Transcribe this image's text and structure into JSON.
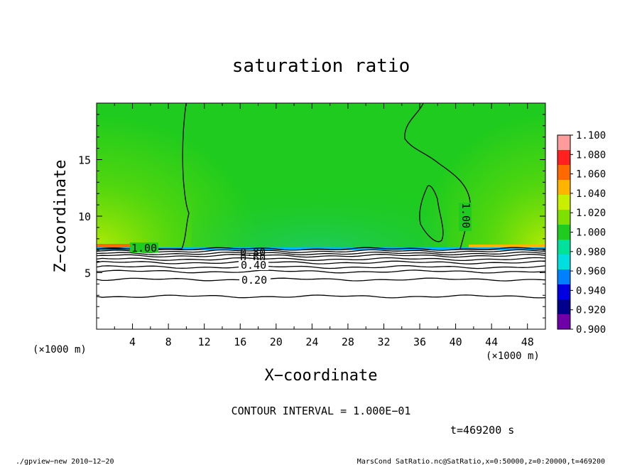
{
  "chart_data": {
    "type": "heatmap",
    "title": "saturation ratio",
    "xlabel": "X−coordinate",
    "ylabel": "Z−coordinate",
    "x_unit_label": "(×1000 m)",
    "xlim": [
      0,
      50
    ],
    "ylim": [
      0,
      20
    ],
    "x_ticks": [
      "4",
      "8",
      "12",
      "16",
      "20",
      "24",
      "28",
      "32",
      "36",
      "40",
      "44",
      "48"
    ],
    "y_ticks": [
      "5",
      "10",
      "15"
    ],
    "colorbar": {
      "levels": [
        "1.100",
        "1.080",
        "1.060",
        "1.040",
        "1.020",
        "1.000",
        "0.980",
        "0.960",
        "0.940",
        "0.920",
        "0.900"
      ],
      "colors": [
        "#ff9b9b",
        "#ff2020",
        "#ff6a00",
        "#ffb400",
        "#c8ee00",
        "#7ee000",
        "#1ecb1e",
        "#00e29b",
        "#00dede",
        "#0080ff",
        "#0000e0",
        "#00008c",
        "#6e00aa"
      ]
    },
    "field": {
      "upper_value": 1.0,
      "layer_top_z": 7.2,
      "below_layer": "white with black contour lines"
    },
    "contour_labels": [
      "1.00",
      "0.80",
      "0.60",
      "0.40",
      "0.20",
      "1.00"
    ],
    "contour_levels_z": [
      2.9,
      4.4,
      5.1,
      5.5,
      5.9,
      6.2,
      6.5,
      6.7,
      6.9,
      7.1
    ],
    "contour_interval": "CONTOUR INTERVAL = 1.000E−01",
    "time_label": "t=469200 s"
  },
  "footer": {
    "left": "./gpview−new   2010−12−20",
    "right": "MarsCond_SatRatio.nc@SatRatio,x=0:50000,z=0:20000,t=469200"
  }
}
